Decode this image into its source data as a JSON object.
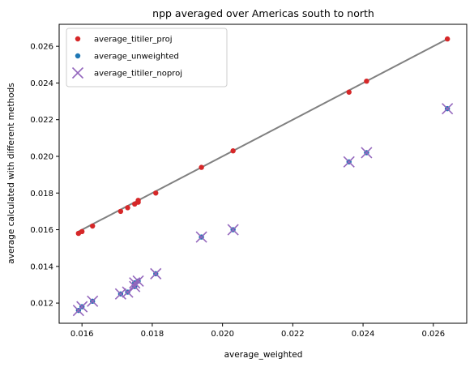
{
  "chart_data": {
    "type": "scatter",
    "title": "npp averaged over Americas south to north",
    "xlabel": "average_weighted",
    "ylabel": "average calculated with different methods",
    "xlim": [
      0.01535,
      0.02695
    ],
    "ylim": [
      0.0109,
      0.0272
    ],
    "xticks": [
      0.016,
      0.018,
      0.02,
      0.022,
      0.024,
      0.026
    ],
    "xtick_labels": [
      "0.016",
      "0.018",
      "0.020",
      "0.022",
      "0.024",
      "0.026"
    ],
    "yticks": [
      0.012,
      0.014,
      0.016,
      0.018,
      0.02,
      0.022,
      0.024,
      0.026
    ],
    "ytick_labels": [
      "0.012",
      "0.014",
      "0.016",
      "0.018",
      "0.020",
      "0.022",
      "0.024",
      "0.026"
    ],
    "grid": false,
    "legend_position": "upper-left",
    "identity_line": {
      "color": "#808080",
      "x": [
        0.0159,
        0.0264
      ],
      "y": [
        0.0159,
        0.0264
      ]
    },
    "series": [
      {
        "name": "average_titiler_proj",
        "marker": "circle",
        "color": "#d62728",
        "x": [
          0.0159,
          0.016,
          0.0163,
          0.0171,
          0.0173,
          0.0175,
          0.0176,
          0.0176,
          0.0181,
          0.0194,
          0.0203,
          0.0236,
          0.0241,
          0.0264
        ],
        "y": [
          0.0158,
          0.0159,
          0.0162,
          0.017,
          0.0172,
          0.0174,
          0.0175,
          0.0176,
          0.018,
          0.0194,
          0.0203,
          0.0235,
          0.0241,
          0.0264
        ]
      },
      {
        "name": "average_unweighted",
        "marker": "circle",
        "color": "#1f77b4",
        "x": [
          0.0159,
          0.016,
          0.0163,
          0.0171,
          0.0173,
          0.0175,
          0.0175,
          0.0176,
          0.0181,
          0.0194,
          0.0203,
          0.0236,
          0.0241,
          0.0264
        ],
        "y": [
          0.0116,
          0.0118,
          0.0121,
          0.0125,
          0.0126,
          0.0131,
          0.0129,
          0.0132,
          0.0136,
          0.0156,
          0.016,
          0.0197,
          0.0202,
          0.0226
        ]
      },
      {
        "name": "average_titiler_noproj",
        "marker": "x",
        "color": "#9467bd",
        "x": [
          0.0159,
          0.016,
          0.0163,
          0.0171,
          0.0173,
          0.0175,
          0.0175,
          0.0176,
          0.0181,
          0.0194,
          0.0203,
          0.0236,
          0.0241,
          0.0264
        ],
        "y": [
          0.0116,
          0.0118,
          0.0121,
          0.0125,
          0.0126,
          0.0131,
          0.0129,
          0.0132,
          0.0136,
          0.0156,
          0.016,
          0.0197,
          0.0202,
          0.0226
        ]
      }
    ]
  }
}
